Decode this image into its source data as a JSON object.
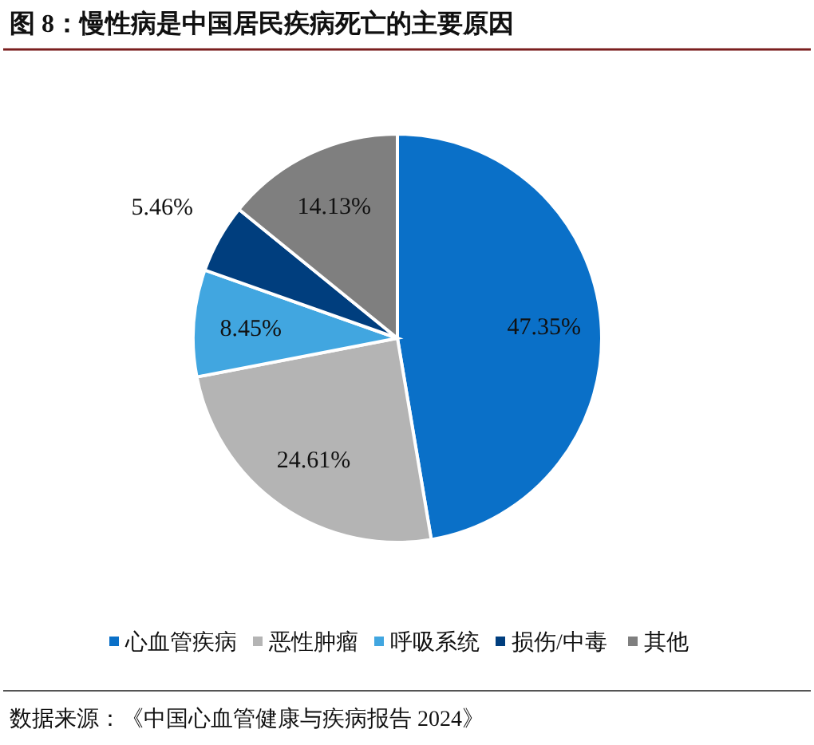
{
  "chart_data": {
    "type": "pie",
    "title": "图 8：慢性病是中国居民疾病死亡的主要原因",
    "categories": [
      "心血管疾病",
      "恶性肿瘤",
      "呼吸系统",
      "损伤/中毒",
      "其他"
    ],
    "values": [
      47.35,
      24.61,
      8.45,
      5.46,
      14.13
    ],
    "colors": [
      "#0a70c8",
      "#b4b4b4",
      "#41a6e0",
      "#003e7e",
      "#7f7f7f"
    ],
    "value_labels": [
      "47.35%",
      "24.61%",
      "8.45%",
      "5.46%",
      "14.13%"
    ],
    "legend": "bottom",
    "annotations": [
      "数据来源：《中国心血管健康与疾病报告 2024》"
    ]
  }
}
